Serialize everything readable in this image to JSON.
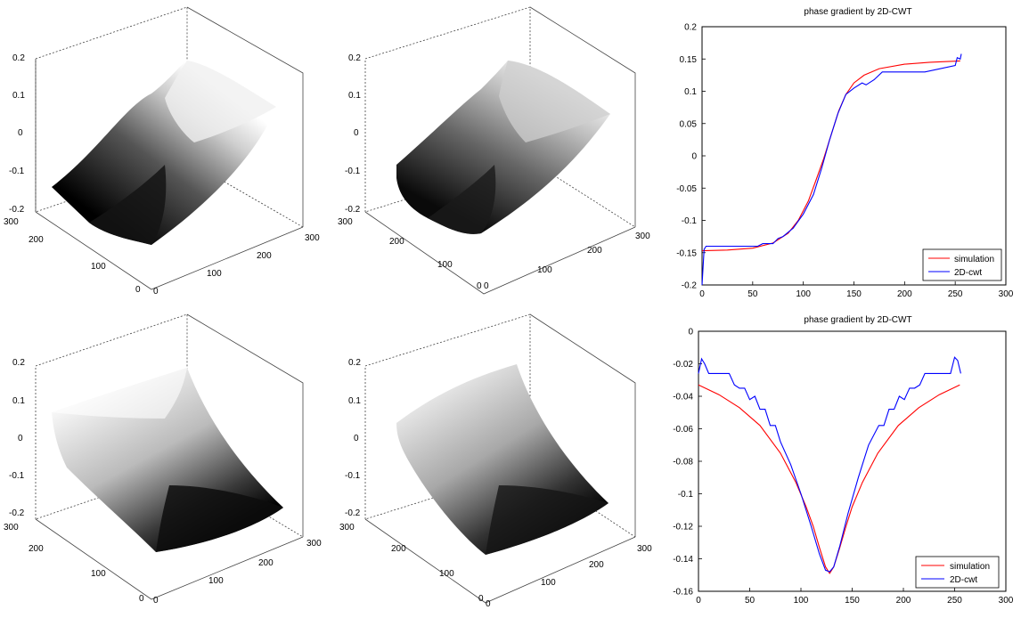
{
  "surface_ticks": {
    "z": [
      "0.2",
      "0.1",
      "0",
      "-0.1",
      "-0.2"
    ],
    "y": [
      "300",
      "200",
      "100",
      "0"
    ],
    "x": [
      "0",
      "100",
      "200",
      "300"
    ]
  },
  "chart_data": [
    {
      "type": "surface",
      "panel": "top-left",
      "zlim": [
        -0.2,
        0.2
      ],
      "xlim": [
        0,
        300
      ],
      "ylim": [
        0,
        300
      ],
      "shading": "gray",
      "colormap": [
        "#000000",
        "#ffffff"
      ]
    },
    {
      "type": "surface",
      "panel": "top-middle",
      "zlim": [
        -0.2,
        0.2
      ],
      "xlim": [
        0,
        300
      ],
      "ylim": [
        0,
        300
      ],
      "shading": "gray",
      "colormap": [
        "#000000",
        "#ffffff"
      ]
    },
    {
      "type": "line",
      "panel": "top-right",
      "title": "phase gradient by 2D-CWT",
      "xlim": [
        0,
        300
      ],
      "ylim": [
        -0.2,
        0.2
      ],
      "xticks": [
        "0",
        "50",
        "100",
        "150",
        "200",
        "250",
        "300"
      ],
      "yticks": [
        "0.2",
        "0.15",
        "0.1",
        "0.05",
        "0",
        "-0.05",
        "-0.1",
        "-0.15",
        "-0.2"
      ],
      "legend_position": "bottom-right",
      "series": [
        {
          "name": "simulation",
          "color": "#ff0000",
          "x": [
            0,
            25,
            50,
            70,
            85,
            95,
            105,
            112,
            120,
            128,
            135,
            142,
            150,
            160,
            175,
            200,
            225,
            255
          ],
          "y": [
            -0.147,
            -0.146,
            -0.143,
            -0.135,
            -0.12,
            -0.1,
            -0.07,
            -0.04,
            -0.005,
            0.035,
            0.07,
            0.095,
            0.113,
            0.125,
            0.135,
            0.142,
            0.145,
            0.147
          ]
        },
        {
          "name": "2D-cwt",
          "color": "#0000ff",
          "x": [
            0,
            2,
            4,
            10,
            55,
            60,
            70,
            75,
            80,
            90,
            100,
            110,
            118,
            126,
            134,
            142,
            150,
            158,
            162,
            170,
            178,
            200,
            220,
            250,
            252,
            255,
            256
          ],
          "y": [
            -0.2,
            -0.145,
            -0.14,
            -0.14,
            -0.14,
            -0.136,
            -0.136,
            -0.128,
            -0.125,
            -0.112,
            -0.09,
            -0.06,
            -0.02,
            0.025,
            0.065,
            0.095,
            0.105,
            0.113,
            0.11,
            0.118,
            0.13,
            0.13,
            0.13,
            0.14,
            0.152,
            0.15,
            0.158
          ]
        }
      ]
    },
    {
      "type": "surface",
      "panel": "bottom-left",
      "zlim": [
        -0.2,
        0.2
      ],
      "xlim": [
        0,
        300
      ],
      "ylim": [
        0,
        300
      ],
      "shading": "gray",
      "colormap": [
        "#000000",
        "#ffffff"
      ]
    },
    {
      "type": "surface",
      "panel": "bottom-middle",
      "zlim": [
        -0.2,
        0.2
      ],
      "xlim": [
        0,
        300
      ],
      "ylim": [
        0,
        300
      ],
      "shading": "gray",
      "colormap": [
        "#000000",
        "#ffffff"
      ]
    },
    {
      "type": "line",
      "panel": "bottom-right",
      "title": "phase gradient by 2D-CWT",
      "xlim": [
        0,
        300
      ],
      "ylim": [
        -0.16,
        0
      ],
      "xticks": [
        "0",
        "50",
        "100",
        "150",
        "200",
        "250",
        "300"
      ],
      "yticks": [
        "0",
        "-0.02",
        "-0.04",
        "-0.06",
        "-0.08",
        "-0.1",
        "-0.12",
        "-0.14",
        "-0.16"
      ],
      "legend_position": "bottom-right",
      "series": [
        {
          "name": "simulation",
          "color": "#ff0000",
          "x": [
            0,
            20,
            40,
            60,
            80,
            95,
            105,
            112,
            118,
            124,
            128,
            132,
            138,
            144,
            150,
            160,
            175,
            195,
            215,
            235,
            255
          ],
          "y": [
            -0.033,
            -0.039,
            -0.047,
            -0.058,
            -0.075,
            -0.093,
            -0.108,
            -0.12,
            -0.133,
            -0.145,
            -0.149,
            -0.145,
            -0.133,
            -0.12,
            -0.108,
            -0.093,
            -0.075,
            -0.058,
            -0.047,
            -0.039,
            -0.033
          ]
        },
        {
          "name": "2D-cwt",
          "color": "#0000ff",
          "x": [
            0,
            3,
            6,
            10,
            30,
            35,
            40,
            45,
            50,
            55,
            60,
            65,
            70,
            75,
            80,
            90,
            100,
            110,
            118,
            124,
            128,
            132,
            138,
            146,
            156,
            166,
            176,
            181,
            186,
            191,
            196,
            201,
            206,
            211,
            216,
            221,
            226,
            231,
            236,
            241,
            246,
            250,
            253,
            256
          ],
          "y": [
            -0.026,
            -0.017,
            -0.02,
            -0.026,
            -0.026,
            -0.033,
            -0.035,
            -0.035,
            -0.042,
            -0.04,
            -0.048,
            -0.048,
            -0.058,
            -0.058,
            -0.068,
            -0.082,
            -0.1,
            -0.12,
            -0.137,
            -0.147,
            -0.148,
            -0.145,
            -0.132,
            -0.112,
            -0.09,
            -0.07,
            -0.058,
            -0.058,
            -0.048,
            -0.048,
            -0.04,
            -0.042,
            -0.035,
            -0.035,
            -0.033,
            -0.026,
            -0.026,
            -0.026,
            -0.026,
            -0.026,
            -0.026,
            -0.016,
            -0.018,
            -0.026
          ]
        }
      ]
    }
  ]
}
